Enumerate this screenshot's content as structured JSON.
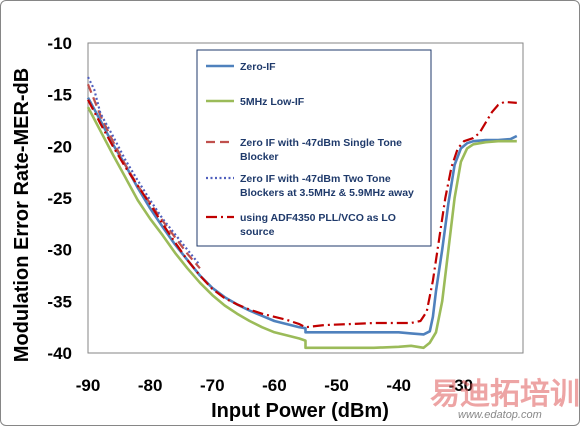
{
  "chart_data": {
    "type": "line",
    "xlabel": "Input Power (dBm)",
    "ylabel": "Modulation Error Rate-MER-dB",
    "xlim": [
      -90,
      -20
    ],
    "ylim": [
      -40,
      -10
    ],
    "x_ticks": [
      -90,
      -80,
      -70,
      -60,
      -50,
      -40,
      -30
    ],
    "y_ticks": [
      -10,
      -15,
      -20,
      -25,
      -30,
      -35,
      -40
    ],
    "grid": "none",
    "legend_position": "inside-top-center",
    "series": [
      {
        "name": "Zero-IF",
        "color": "#4f81bd",
        "dash": "solid",
        "points": [
          [
            -90,
            -15.3
          ],
          [
            -88,
            -17.5
          ],
          [
            -86,
            -19.8
          ],
          [
            -84,
            -21.8
          ],
          [
            -82,
            -24.0
          ],
          [
            -80,
            -26.0
          ],
          [
            -78,
            -27.8
          ],
          [
            -76,
            -29.5
          ],
          [
            -74,
            -31.0
          ],
          [
            -72,
            -32.5
          ],
          [
            -70,
            -33.7
          ],
          [
            -68,
            -34.6
          ],
          [
            -66,
            -35.3
          ],
          [
            -64,
            -35.9
          ],
          [
            -62,
            -36.4
          ],
          [
            -60,
            -36.9
          ],
          [
            -58,
            -37.2
          ],
          [
            -56,
            -37.5
          ],
          [
            -55,
            -37.6
          ],
          [
            -55,
            -38.0
          ],
          [
            -52,
            -38.0
          ],
          [
            -48,
            -38.0
          ],
          [
            -44,
            -38.0
          ],
          [
            -40,
            -38.0
          ],
          [
            -38,
            -38.1
          ],
          [
            -36,
            -38.2
          ],
          [
            -35,
            -37.9
          ],
          [
            -34.5,
            -36.5
          ],
          [
            -34,
            -34.0
          ],
          [
            -33,
            -30.0
          ],
          [
            -32,
            -25.5
          ],
          [
            -31,
            -21.8
          ],
          [
            -30,
            -20.2
          ],
          [
            -29,
            -19.7
          ],
          [
            -28,
            -19.5
          ],
          [
            -26,
            -19.4
          ],
          [
            -24,
            -19.4
          ],
          [
            -22,
            -19.3
          ],
          [
            -21,
            -19.0
          ]
        ]
      },
      {
        "name": "5MHz Low-IF",
        "color": "#9bbb59",
        "dash": "solid",
        "points": [
          [
            -90,
            -16.2
          ],
          [
            -88,
            -18.5
          ],
          [
            -86,
            -20.8
          ],
          [
            -84,
            -23.0
          ],
          [
            -82,
            -25.2
          ],
          [
            -80,
            -27.0
          ],
          [
            -78,
            -28.6
          ],
          [
            -76,
            -30.3
          ],
          [
            -74,
            -31.8
          ],
          [
            -72,
            -33.2
          ],
          [
            -70,
            -34.4
          ],
          [
            -68,
            -35.4
          ],
          [
            -66,
            -36.2
          ],
          [
            -64,
            -36.9
          ],
          [
            -62,
            -37.5
          ],
          [
            -60,
            -38.0
          ],
          [
            -58,
            -38.3
          ],
          [
            -56,
            -38.6
          ],
          [
            -55,
            -38.8
          ],
          [
            -55,
            -39.5
          ],
          [
            -52,
            -39.5
          ],
          [
            -48,
            -39.5
          ],
          [
            -44,
            -39.5
          ],
          [
            -40,
            -39.4
          ],
          [
            -38,
            -39.3
          ],
          [
            -36,
            -39.5
          ],
          [
            -35,
            -39.0
          ],
          [
            -34,
            -38.0
          ],
          [
            -33,
            -35.0
          ],
          [
            -32,
            -30.0
          ],
          [
            -31,
            -25.0
          ],
          [
            -30,
            -21.5
          ],
          [
            -29,
            -20.2
          ],
          [
            -28,
            -19.8
          ],
          [
            -26,
            -19.6
          ],
          [
            -24,
            -19.5
          ],
          [
            -22,
            -19.5
          ],
          [
            -21,
            -19.5
          ]
        ]
      },
      {
        "name": "Zero IF with -47dBm Single Tone Blocker",
        "color": "#c0504d",
        "dash": "long-dash",
        "points": [
          [
            -90,
            -14.0
          ],
          [
            -88,
            -17.0
          ],
          [
            -86,
            -19.5
          ],
          [
            -84,
            -21.8
          ],
          [
            -82,
            -23.8
          ],
          [
            -80,
            -25.5
          ],
          [
            -78,
            -27.2
          ],
          [
            -76,
            -28.8
          ],
          [
            -74,
            -30.4
          ],
          [
            -72,
            -31.8
          ]
        ]
      },
      {
        "name": "Zero IF with -47dBm Two Tone Blockers at 3.5MHz & 5.9MHz away",
        "color": "#4f5fbd",
        "dash": "dotted",
        "points": [
          [
            -90,
            -13.3
          ],
          [
            -89,
            -14.5
          ],
          [
            -88,
            -16.8
          ],
          [
            -86,
            -19.0
          ],
          [
            -84,
            -21.3
          ],
          [
            -82,
            -23.3
          ],
          [
            -80,
            -25.2
          ],
          [
            -78,
            -27.0
          ],
          [
            -76,
            -28.5
          ],
          [
            -74,
            -30.0
          ],
          [
            -72,
            -31.5
          ]
        ]
      },
      {
        "name": "using ADF4350 PLL/VCO as LO source",
        "color": "#c00000",
        "dash": "dash-dot",
        "points": [
          [
            -90,
            -15.5
          ],
          [
            -88,
            -17.8
          ],
          [
            -86,
            -20.0
          ],
          [
            -84,
            -22.0
          ],
          [
            -82,
            -23.8
          ],
          [
            -80,
            -25.6
          ],
          [
            -78,
            -27.5
          ],
          [
            -76,
            -29.3
          ],
          [
            -74,
            -31.0
          ],
          [
            -72,
            -32.5
          ],
          [
            -70,
            -33.8
          ],
          [
            -68,
            -34.7
          ],
          [
            -66,
            -35.3
          ],
          [
            -64,
            -35.8
          ],
          [
            -62,
            -36.2
          ],
          [
            -60,
            -36.5
          ],
          [
            -58,
            -36.8
          ],
          [
            -56,
            -37.2
          ],
          [
            -55,
            -37.5
          ],
          [
            -52,
            -37.3
          ],
          [
            -48,
            -37.2
          ],
          [
            -44,
            -37.1
          ],
          [
            -40,
            -37.1
          ],
          [
            -38,
            -37.1
          ],
          [
            -36.5,
            -36.9
          ],
          [
            -35.5,
            -36.0
          ],
          [
            -34.5,
            -33.0
          ],
          [
            -33.5,
            -29.0
          ],
          [
            -32.5,
            -25.0
          ],
          [
            -31.5,
            -22.0
          ],
          [
            -30.5,
            -20.2
          ],
          [
            -29.5,
            -19.5
          ],
          [
            -28,
            -19.2
          ],
          [
            -27,
            -18.7
          ],
          [
            -26,
            -17.7
          ],
          [
            -25,
            -16.7
          ],
          [
            -24,
            -16.0
          ],
          [
            -23,
            -15.7
          ],
          [
            -21,
            -15.8
          ]
        ]
      }
    ]
  },
  "legend": {
    "items": [
      {
        "lines": [
          "Zero-IF"
        ]
      },
      {
        "lines": [
          "5MHz Low-IF"
        ]
      },
      {
        "lines": [
          "Zero IF with -47dBm Single Tone",
          "Blocker"
        ]
      },
      {
        "lines": [
          "Zero IF with -47dBm Two Tone",
          "Blockers at 3.5MHz & 5.9MHz away"
        ]
      },
      {
        "lines": [
          "using ADF4350 PLL/VCO as LO",
          "source"
        ]
      }
    ]
  },
  "watermark": {
    "text": "易迪拓培训",
    "url": "www.edatop.com"
  }
}
